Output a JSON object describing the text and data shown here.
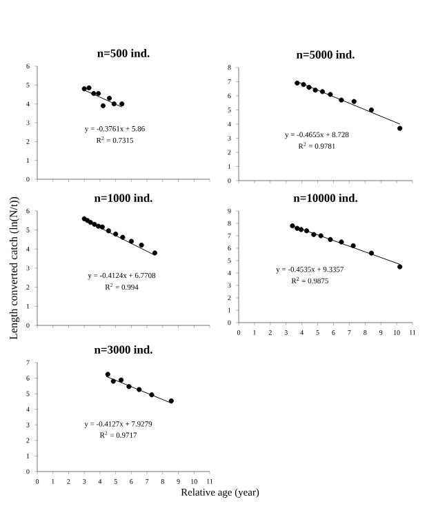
{
  "chart_data": [
    {
      "type": "scatter",
      "title": "n=500 ind.",
      "xlim": [
        0,
        11
      ],
      "xticks": [
        0,
        1,
        2,
        3,
        4,
        5,
        6,
        7,
        8,
        9,
        10,
        11
      ],
      "ylim": [
        0,
        6
      ],
      "yticks": [
        0,
        1,
        2,
        3,
        4,
        5,
        6
      ],
      "tick_labels": "y",
      "annotations": [
        "y = -0.3761x + 5.86",
        "R$^{2}$ = 0.7315"
      ],
      "series": [
        {
          "marker": "circle",
          "color": "#000000",
          "x": [
            3.0,
            3.3,
            3.6,
            3.9,
            4.2,
            4.6,
            4.9,
            5.4
          ],
          "values": [
            4.8,
            4.85,
            4.55,
            4.55,
            3.9,
            4.3,
            4.0,
            4.0
          ]
        },
        {
          "type": "line",
          "marker": "none",
          "color": "#000000",
          "x": [
            3.0,
            5.4
          ],
          "values": [
            4.73,
            3.83
          ]
        }
      ]
    },
    {
      "type": "scatter",
      "title": "n=5000 ind.",
      "xlim": [
        0,
        11
      ],
      "xticks": [
        0,
        1,
        2,
        3,
        4,
        5,
        6,
        7,
        8,
        9,
        10,
        11
      ],
      "ylim": [
        0,
        8
      ],
      "yticks": [
        0,
        1,
        2,
        3,
        4,
        5,
        6,
        7,
        8
      ],
      "tick_labels": "y",
      "annotations": [
        "y = -0.4655x + 8.728",
        "R$^{2}$ = 0.9781"
      ],
      "series": [
        {
          "marker": "circle",
          "color": "#000000",
          "x": [
            3.7,
            4.1,
            4.45,
            4.85,
            5.3,
            5.8,
            6.5,
            7.3,
            8.4,
            10.2
          ],
          "values": [
            6.9,
            6.8,
            6.6,
            6.4,
            6.3,
            6.1,
            5.7,
            5.6,
            5.0,
            3.7
          ]
        },
        {
          "type": "line",
          "marker": "none",
          "color": "#000000",
          "x": [
            3.7,
            10.2
          ],
          "values": [
            7.0,
            4.0
          ]
        }
      ]
    },
    {
      "type": "scatter",
      "title": "n=1000 ind.",
      "ylabel": "Length converted catch (ln(N/t))",
      "xlim": [
        0,
        11
      ],
      "xticks": [
        0,
        1,
        2,
        3,
        4,
        5,
        6,
        7,
        8,
        9,
        10,
        11
      ],
      "ylim": [
        0,
        6
      ],
      "yticks": [
        0,
        1,
        2,
        3,
        4,
        5,
        6
      ],
      "tick_labels": "y",
      "annotations": [
        "y = -0.4124x + 6.7708",
        "R$^{2}$ = 0.994"
      ],
      "series": [
        {
          "marker": "circle",
          "color": "#000000",
          "x": [
            3.0,
            3.2,
            3.4,
            3.65,
            3.9,
            4.15,
            4.55,
            5.0,
            5.45,
            6.0,
            6.65,
            7.5
          ],
          "values": [
            5.59,
            5.5,
            5.4,
            5.3,
            5.2,
            5.16,
            4.96,
            4.79,
            4.62,
            4.41,
            4.21,
            3.8
          ]
        },
        {
          "type": "line",
          "marker": "none",
          "color": "#000000",
          "x": [
            3.0,
            7.5
          ],
          "values": [
            5.53,
            3.68
          ]
        }
      ]
    },
    {
      "type": "scatter",
      "title": "n=10000 ind.",
      "xlim": [
        0,
        11
      ],
      "xticks": [
        0,
        1,
        2,
        3,
        4,
        5,
        6,
        7,
        8,
        9,
        10,
        11
      ],
      "ylim": [
        0,
        9
      ],
      "yticks": [
        0,
        1,
        2,
        3,
        4,
        5,
        6,
        7,
        8,
        9
      ],
      "annotations": [
        "y = -0.4535x + 9.3357",
        "R$^{2}$ = 0.9875"
      ],
      "series": [
        {
          "marker": "circle",
          "color": "#000000",
          "x": [
            3.4,
            3.7,
            3.95,
            4.3,
            4.75,
            5.2,
            5.8,
            6.5,
            7.25,
            8.4,
            10.2
          ],
          "values": [
            7.8,
            7.6,
            7.5,
            7.4,
            7.1,
            7.0,
            6.7,
            6.5,
            6.2,
            5.6,
            4.5
          ]
        },
        {
          "type": "line",
          "marker": "none",
          "color": "#000000",
          "x": [
            3.4,
            10.2
          ],
          "values": [
            7.8,
            4.7
          ]
        }
      ]
    },
    {
      "type": "scatter",
      "title": "n=3000 ind.",
      "xlabel": "Relative age (year)",
      "xlim": [
        0,
        11
      ],
      "xticks": [
        0,
        1,
        2,
        3,
        4,
        5,
        6,
        7,
        8,
        9,
        10,
        11
      ],
      "ylim": [
        0,
        7
      ],
      "yticks": [
        0,
        1,
        2,
        3,
        4,
        5,
        6,
        7
      ],
      "annotations": [
        "y = -0.4127x + 7.9279",
        "R$^{2}$ = 0.9717"
      ],
      "series": [
        {
          "marker": "circle",
          "color": "#000000",
          "x": [
            4.5,
            4.85,
            5.35,
            5.85,
            6.5,
            7.3,
            8.55
          ],
          "values": [
            6.25,
            5.8,
            5.88,
            5.46,
            5.27,
            4.93,
            4.54
          ]
        },
        {
          "type": "line",
          "marker": "none",
          "color": "#000000",
          "x": [
            4.4,
            8.6
          ],
          "values": [
            6.11,
            4.38
          ]
        }
      ]
    }
  ]
}
